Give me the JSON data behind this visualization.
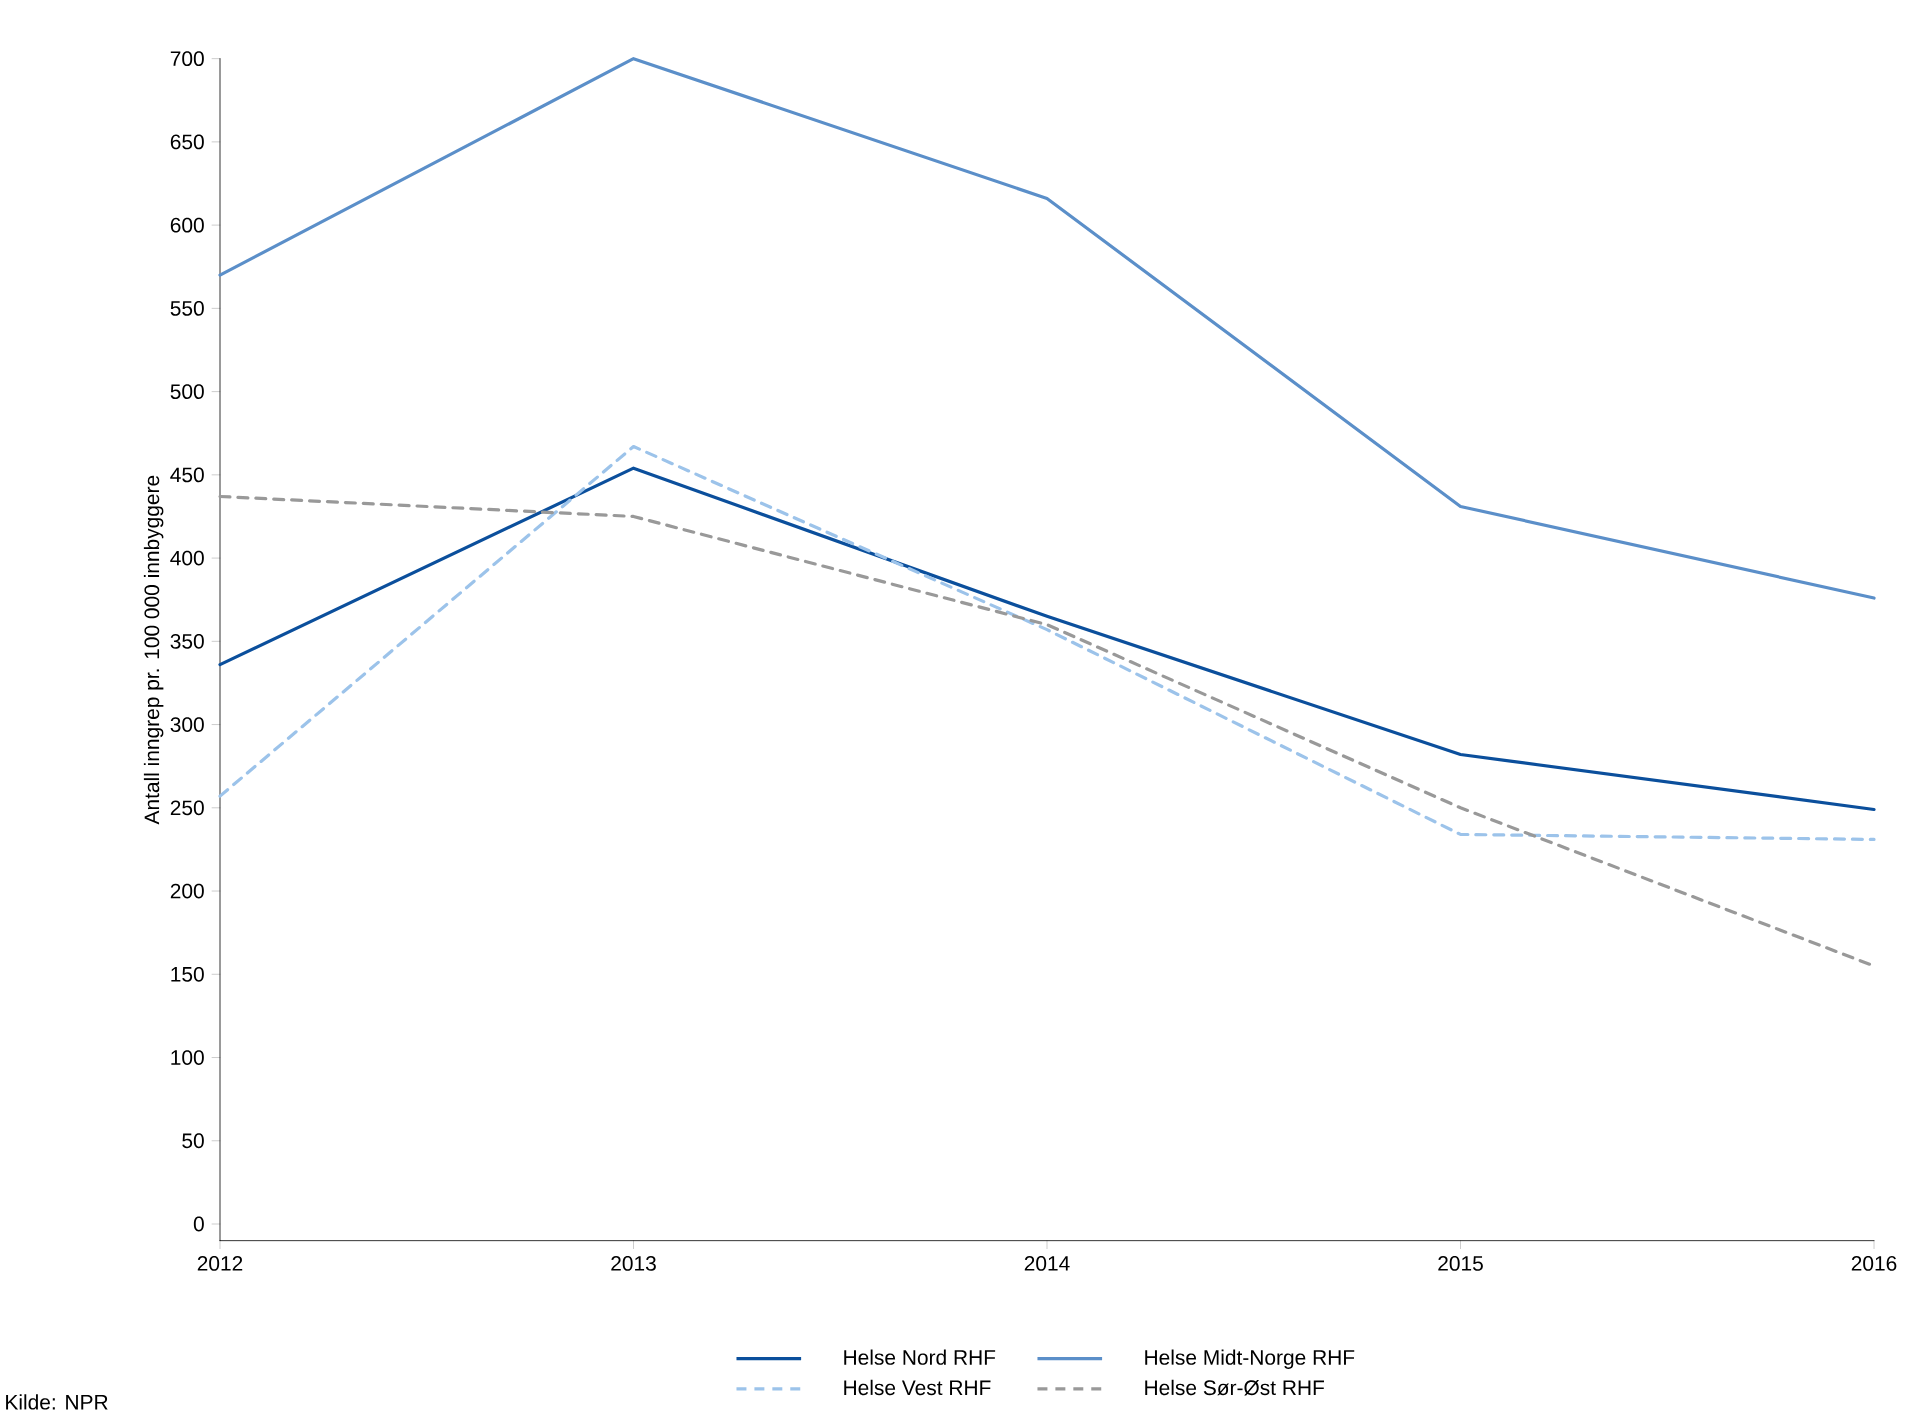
{
  "chart_data": {
    "type": "line",
    "ylabel": "Antall inngrep pr. 100 000 innbyggere",
    "x": [
      2012,
      2013,
      2014,
      2015,
      2016
    ],
    "xlim": [
      2012,
      2016
    ],
    "xticks": [
      2012,
      2013,
      2014,
      2015,
      2016
    ],
    "ylim": [
      -10,
      700
    ],
    "yticks": [
      0,
      50,
      100,
      150,
      200,
      250,
      300,
      350,
      400,
      450,
      500,
      550,
      600,
      650,
      700
    ],
    "grid": false,
    "legend": "bottom",
    "marker": "none",
    "series": [
      {
        "name": "Helse Nord RHF",
        "color": "#0b4f9c",
        "line_style": "solid",
        "values": [
          336,
          454,
          365,
          282,
          249
        ]
      },
      {
        "name": "Helse Midt-Norge RHF",
        "color": "#5b8fc9",
        "line_style": "solid",
        "values": [
          570,
          700,
          616,
          431,
          376
        ]
      },
      {
        "name": "Helse Vest RHF",
        "color": "#9cc3ea",
        "line_style": "dashed",
        "values": [
          257,
          467,
          357,
          234,
          231
        ]
      },
      {
        "name": "Helse Sør-Øst RHF",
        "color": "#999999",
        "line_style": "dashed",
        "values": [
          437,
          425,
          360,
          250,
          155
        ]
      }
    ],
    "annotations": [
      "Kilde: NPR"
    ]
  }
}
